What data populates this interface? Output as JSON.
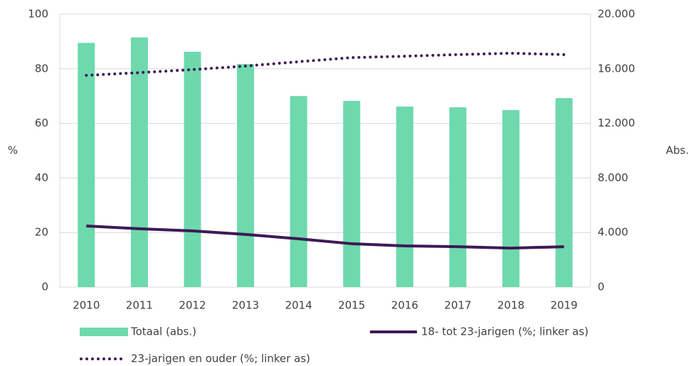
{
  "chart_data": {
    "type": "bar",
    "categories": [
      "2010",
      "2011",
      "2012",
      "2013",
      "2014",
      "2015",
      "2016",
      "2017",
      "2018",
      "2019"
    ],
    "ylabel": "%",
    "y2label": "Abs.",
    "ylim": [
      0,
      100
    ],
    "yticks": [
      0,
      20,
      40,
      60,
      80,
      100
    ],
    "y2lim": [
      0,
      20000
    ],
    "y2ticks": [
      0,
      {
        "value": 4000,
        "label": "4.000"
      },
      {
        "value": 8000,
        "label": "8.000"
      },
      {
        "value": 12000,
        "label": "12.000"
      },
      {
        "value": 16000,
        "label": "16.000"
      },
      {
        "value": 20000,
        "label": "20.000"
      }
    ],
    "grid": true,
    "legend": "bottom",
    "series": [
      {
        "name": "Totaal (abs.)",
        "type": "bar",
        "axis": "y2",
        "color": "#6dd9ad",
        "values": [
          17900,
          18300,
          17250,
          16350,
          14000,
          13650,
          13230,
          13180,
          12970,
          13850
        ]
      },
      {
        "name": "18- tot 23-jarigen (%; linker as)",
        "type": "line",
        "line_style": "solid",
        "color": "#3d1a55",
        "values": [
          22.4,
          21.4,
          20.6,
          19.3,
          17.7,
          15.9,
          15.1,
          14.8,
          14.3,
          14.8
        ]
      },
      {
        "name": "23-jarigen en ouder (%; linker as)",
        "type": "line",
        "line_style": "dotted",
        "color": "#3d1a55",
        "values": [
          77.6,
          78.6,
          79.7,
          81.0,
          82.6,
          84.1,
          84.6,
          85.2,
          85.7,
          85.2
        ]
      }
    ]
  }
}
